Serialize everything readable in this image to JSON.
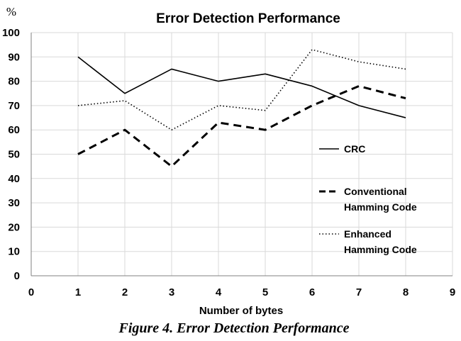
{
  "chart_data": {
    "type": "line",
    "title": "Error Detection Performance",
    "xlabel": "Number of bytes",
    "ylabel": "%",
    "xlim": [
      0,
      9
    ],
    "ylim": [
      0,
      100
    ],
    "xticks": [
      0,
      1,
      2,
      3,
      4,
      5,
      6,
      7,
      8,
      9
    ],
    "yticks": [
      0,
      10,
      20,
      30,
      40,
      50,
      60,
      70,
      80,
      90,
      100
    ],
    "grid": true,
    "legend": "right",
    "x": [
      1,
      2,
      3,
      4,
      5,
      6,
      7,
      8
    ],
    "series": [
      {
        "name": "CRC",
        "style": "solid",
        "values": [
          90,
          75,
          85,
          80,
          83,
          78,
          70,
          65
        ]
      },
      {
        "name": "Conventional Hamming Code",
        "legend_lines": [
          "Conventional",
          "Hamming Code"
        ],
        "style": "dashed",
        "values": [
          50,
          60,
          45,
          63,
          60,
          70,
          78,
          73
        ]
      },
      {
        "name": "Enhanced Hamming Code",
        "legend_lines": [
          "Enhanced",
          "Hamming Code"
        ],
        "style": "dotted",
        "values": [
          70,
          72,
          60,
          70,
          68,
          93,
          88,
          85
        ]
      }
    ]
  },
  "caption": "Figure 4. Error Detection Performance",
  "colors": {
    "line": "#000000",
    "grid": "#d9d9d9"
  }
}
